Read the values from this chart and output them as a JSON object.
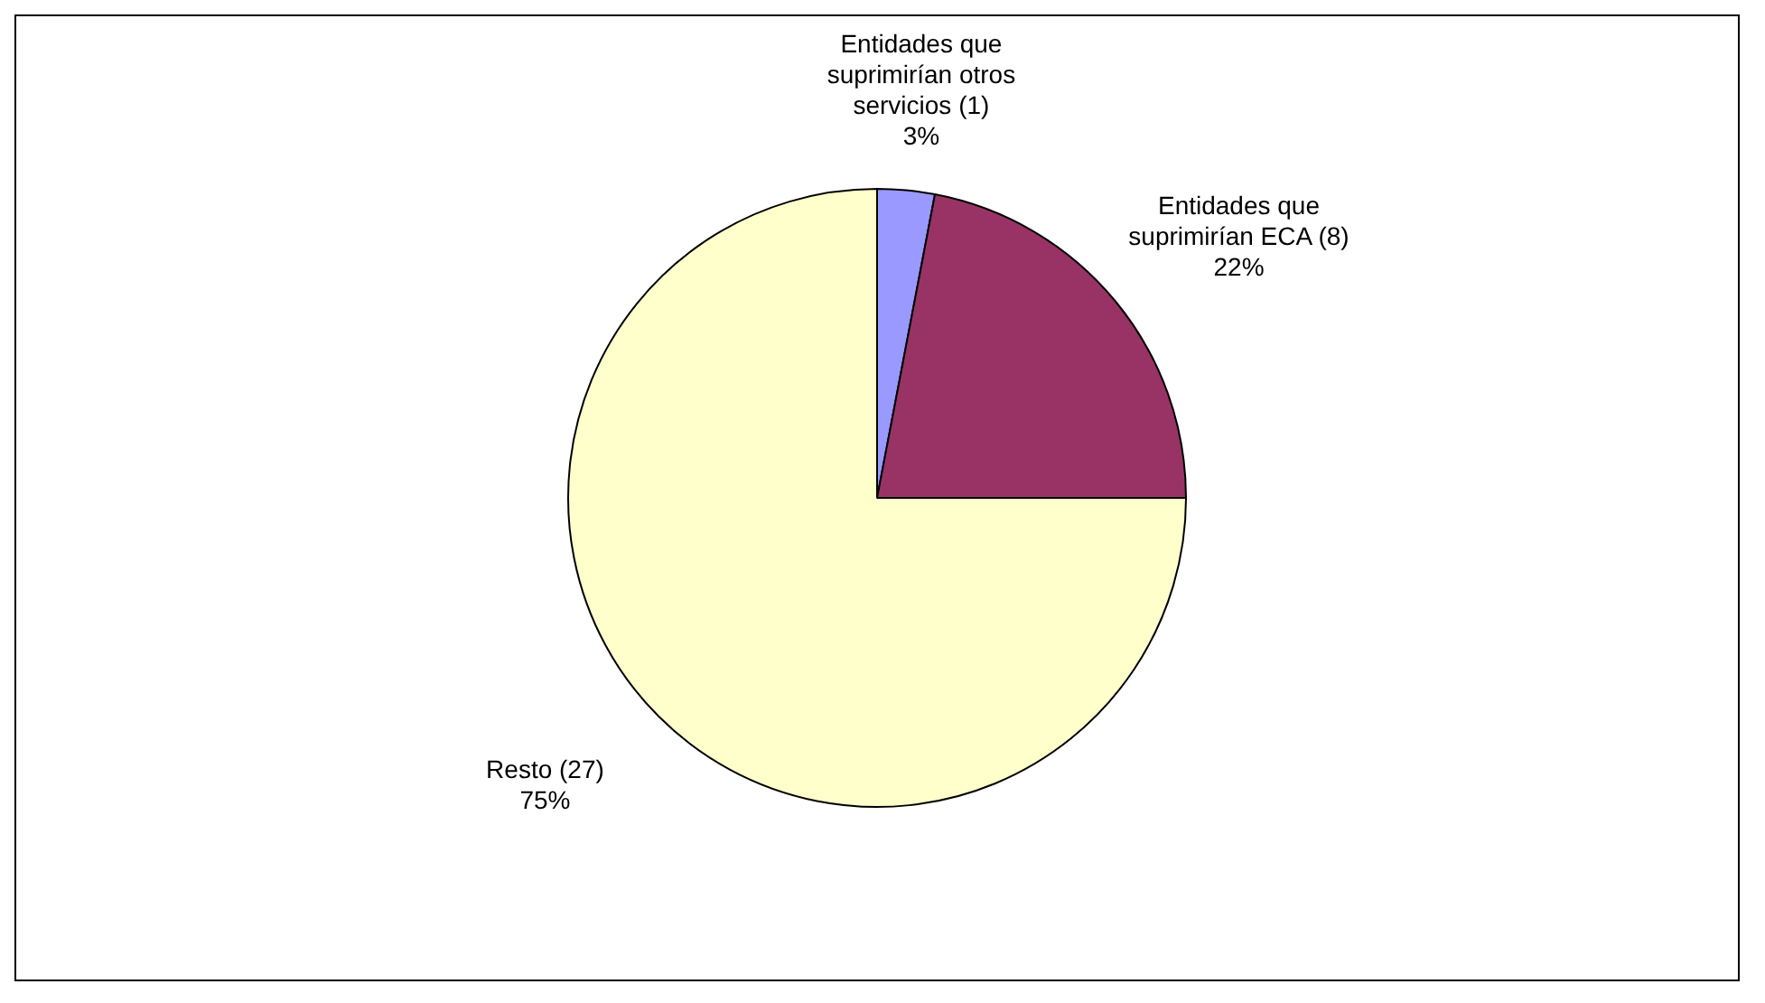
{
  "chart_data": {
    "type": "pie",
    "categories": [
      "Entidades que suprimirían otros servicios (1)",
      "Entidades que suprimirían ECA (8)",
      "Resto (27)"
    ],
    "values": [
      3,
      22,
      75
    ],
    "colors": [
      "#9999ff",
      "#993366",
      "#ffffcc"
    ],
    "value_labels": [
      "3%",
      "22%",
      "75%"
    ],
    "legend": false
  }
}
